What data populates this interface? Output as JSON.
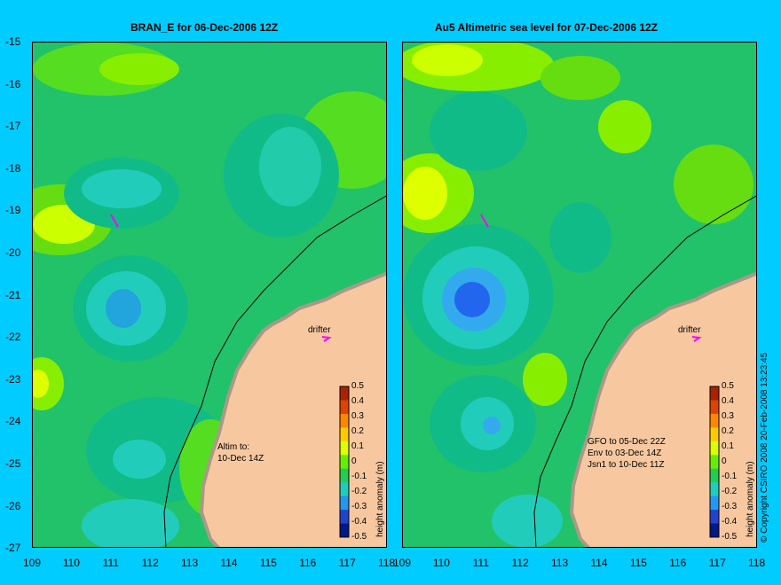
{
  "left_panel": {
    "title": "BRAN_E  for 06-Dec-2006 12Z",
    "drifter_label": "drifter",
    "annotation": [
      "Altim to:",
      "10-Dec 14Z"
    ]
  },
  "right_panel": {
    "title": "Au5  Altimetric sea level  for 07-Dec-2006 12Z",
    "drifter_label": "drifter",
    "annotation": [
      "GFO to 05-Dec 22Z",
      "Env to 03-Dec 14Z",
      "Jsn1 to 10-Dec 11Z"
    ]
  },
  "axes": {
    "lat_ticks": [
      "-15",
      "-16",
      "-17",
      "-18",
      "-19",
      "-20",
      "-21",
      "-22",
      "-23",
      "-24",
      "-25",
      "-26",
      "-27"
    ],
    "lon_ticks": [
      "109",
      "110",
      "111",
      "112",
      "113",
      "114",
      "115",
      "116",
      "117",
      "118"
    ]
  },
  "colorbar": {
    "title": "height anomaly (m)",
    "ticks": [
      "0.5",
      "0.4",
      "0.3",
      "0.2",
      "0.1",
      "0",
      "-0.1",
      "-0.2",
      "-0.3",
      "-0.4",
      "-0.5"
    ]
  },
  "copyright": "© Copyright CSIRO 2008    20-Feb-2008 13:23:45",
  "colors": {
    "background": "#00ccff",
    "land": "#f7c8a0",
    "drifter_arrow": "#ff00ff"
  }
}
